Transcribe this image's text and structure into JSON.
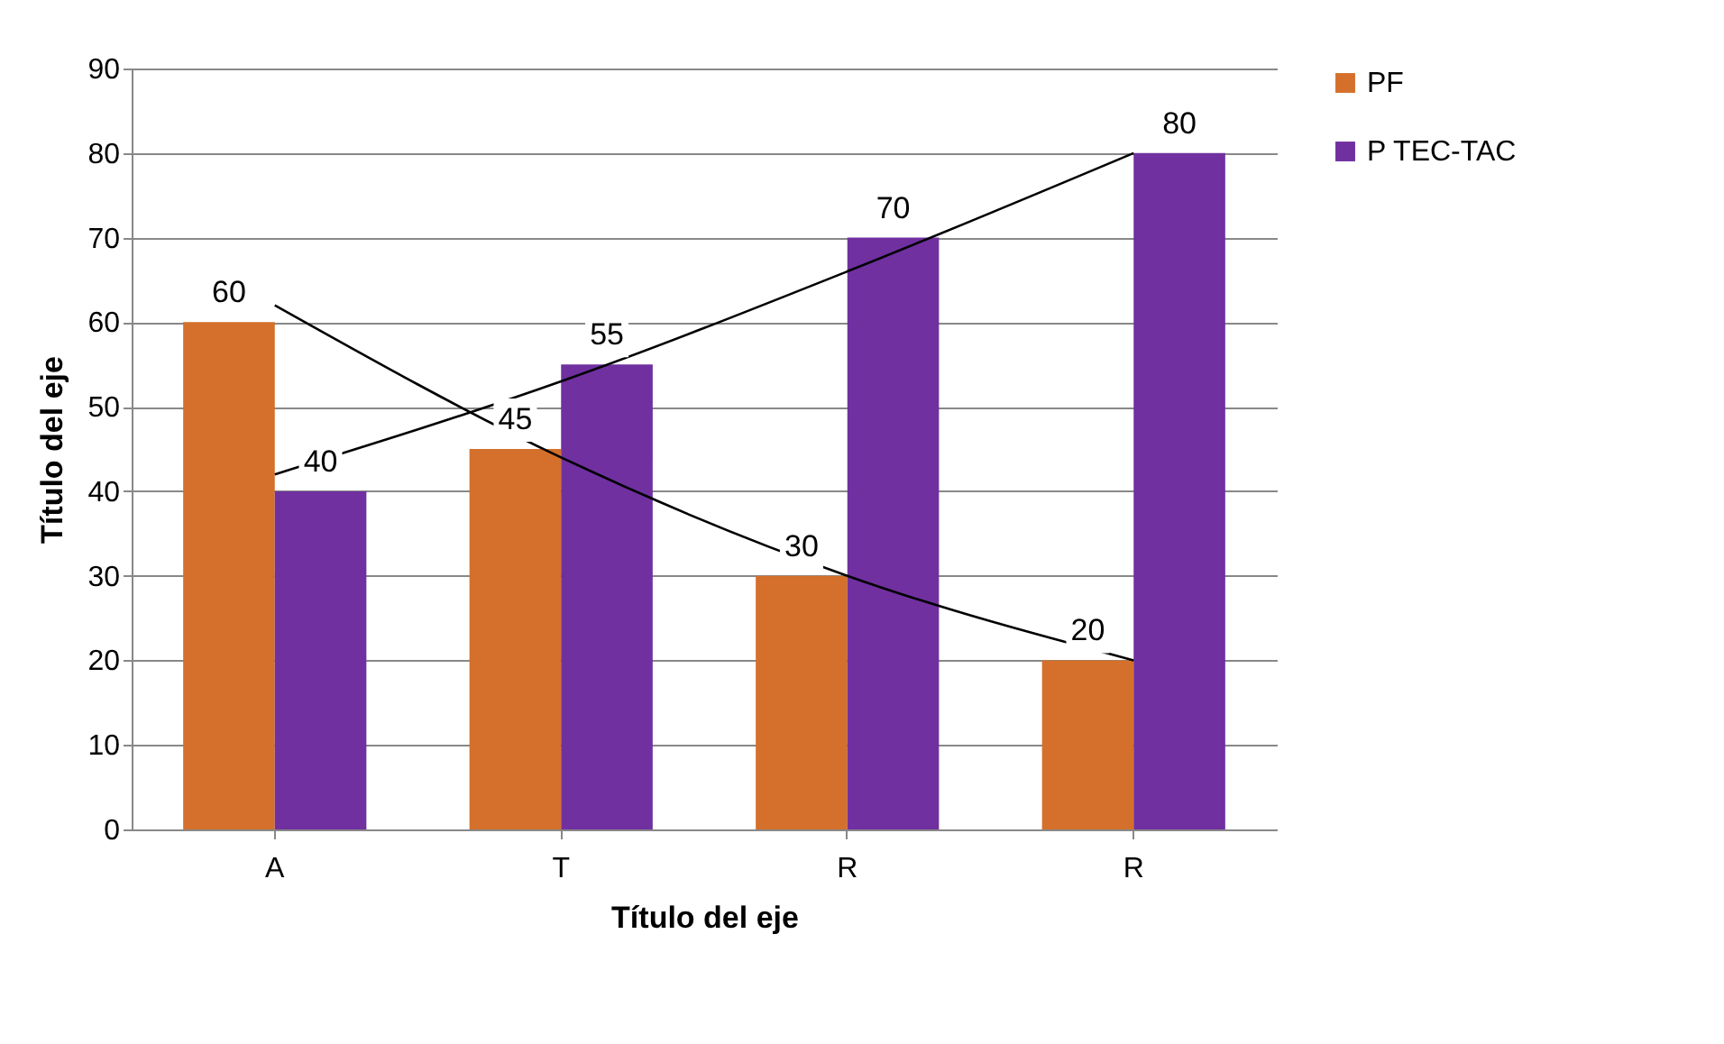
{
  "chart_data": {
    "type": "bar",
    "categories": [
      "A",
      "T",
      "R",
      "R"
    ],
    "series": [
      {
        "name": "PF",
        "color": "#d4702b",
        "values": [
          60,
          45,
          30,
          20
        ],
        "value_labels": [
          "60",
          "45",
          "30",
          "20"
        ]
      },
      {
        "name": "P TEC-TAC",
        "color": "#7030a0",
        "values": [
          40,
          55,
          70,
          80
        ],
        "value_labels": [
          "40",
          "55",
          "70",
          "80"
        ]
      },
      {
        "type": "line",
        "color": "#000000",
        "values": [
          62,
          44,
          30,
          20
        ]
      },
      {
        "type": "line",
        "color": "#000000",
        "values": [
          42,
          53,
          66,
          80
        ]
      }
    ],
    "xlabel": "Título del eje",
    "ylabel": "Título del eje",
    "ylim": [
      0,
      90
    ],
    "yticks": [
      0,
      10,
      20,
      30,
      40,
      50,
      60,
      70,
      80,
      90
    ],
    "grid": "y",
    "legend": "right"
  }
}
